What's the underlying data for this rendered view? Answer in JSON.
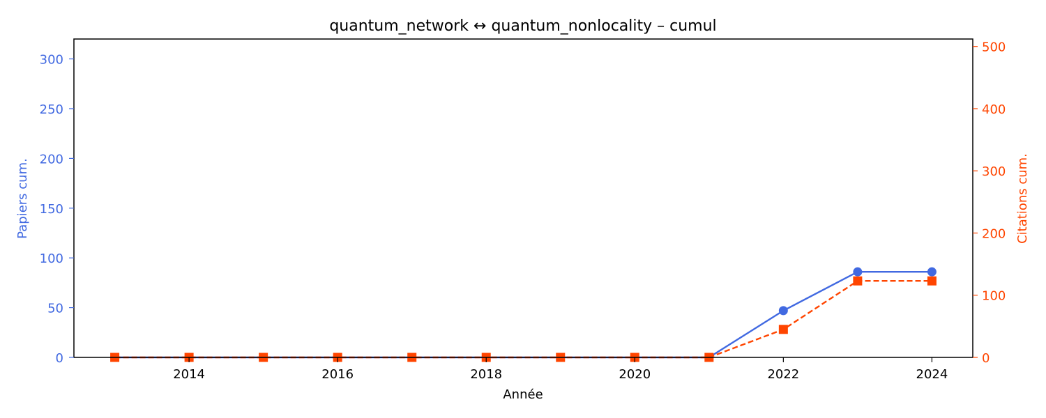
{
  "chart_data": {
    "type": "line",
    "title": "quantum_network  ↔  quantum_nonlocality  –  cumul",
    "xlabel": "Année",
    "ylabel_left": "Papiers cum.",
    "ylabel_right": "Citations cum.",
    "xlim": [
      2012.45,
      2024.55
    ],
    "ylim_left": [
      0,
      320
    ],
    "ylim_right": [
      0,
      512
    ],
    "x_ticks": [
      2014,
      2016,
      2018,
      2020,
      2022,
      2024
    ],
    "y_ticks_left": [
      0,
      50,
      100,
      150,
      200,
      250,
      300
    ],
    "y_ticks_right": [
      0,
      100,
      200,
      300,
      400,
      500
    ],
    "x": [
      2013,
      2014,
      2015,
      2016,
      2017,
      2018,
      2019,
      2020,
      2021,
      2022,
      2023,
      2024
    ],
    "series": [
      {
        "axis": "left",
        "color": "#4169e1",
        "marker": "circle",
        "line_style": "solid",
        "values": [
          0,
          0,
          0,
          0,
          0,
          0,
          0,
          0,
          0,
          47,
          86,
          86
        ]
      },
      {
        "axis": "right",
        "color": "#ff4500",
        "marker": "square",
        "line_style": "dashed",
        "values": [
          0,
          0,
          0,
          0,
          0,
          0,
          0,
          0,
          0,
          45,
          123,
          123
        ]
      }
    ],
    "grid": false,
    "legend": "none"
  }
}
